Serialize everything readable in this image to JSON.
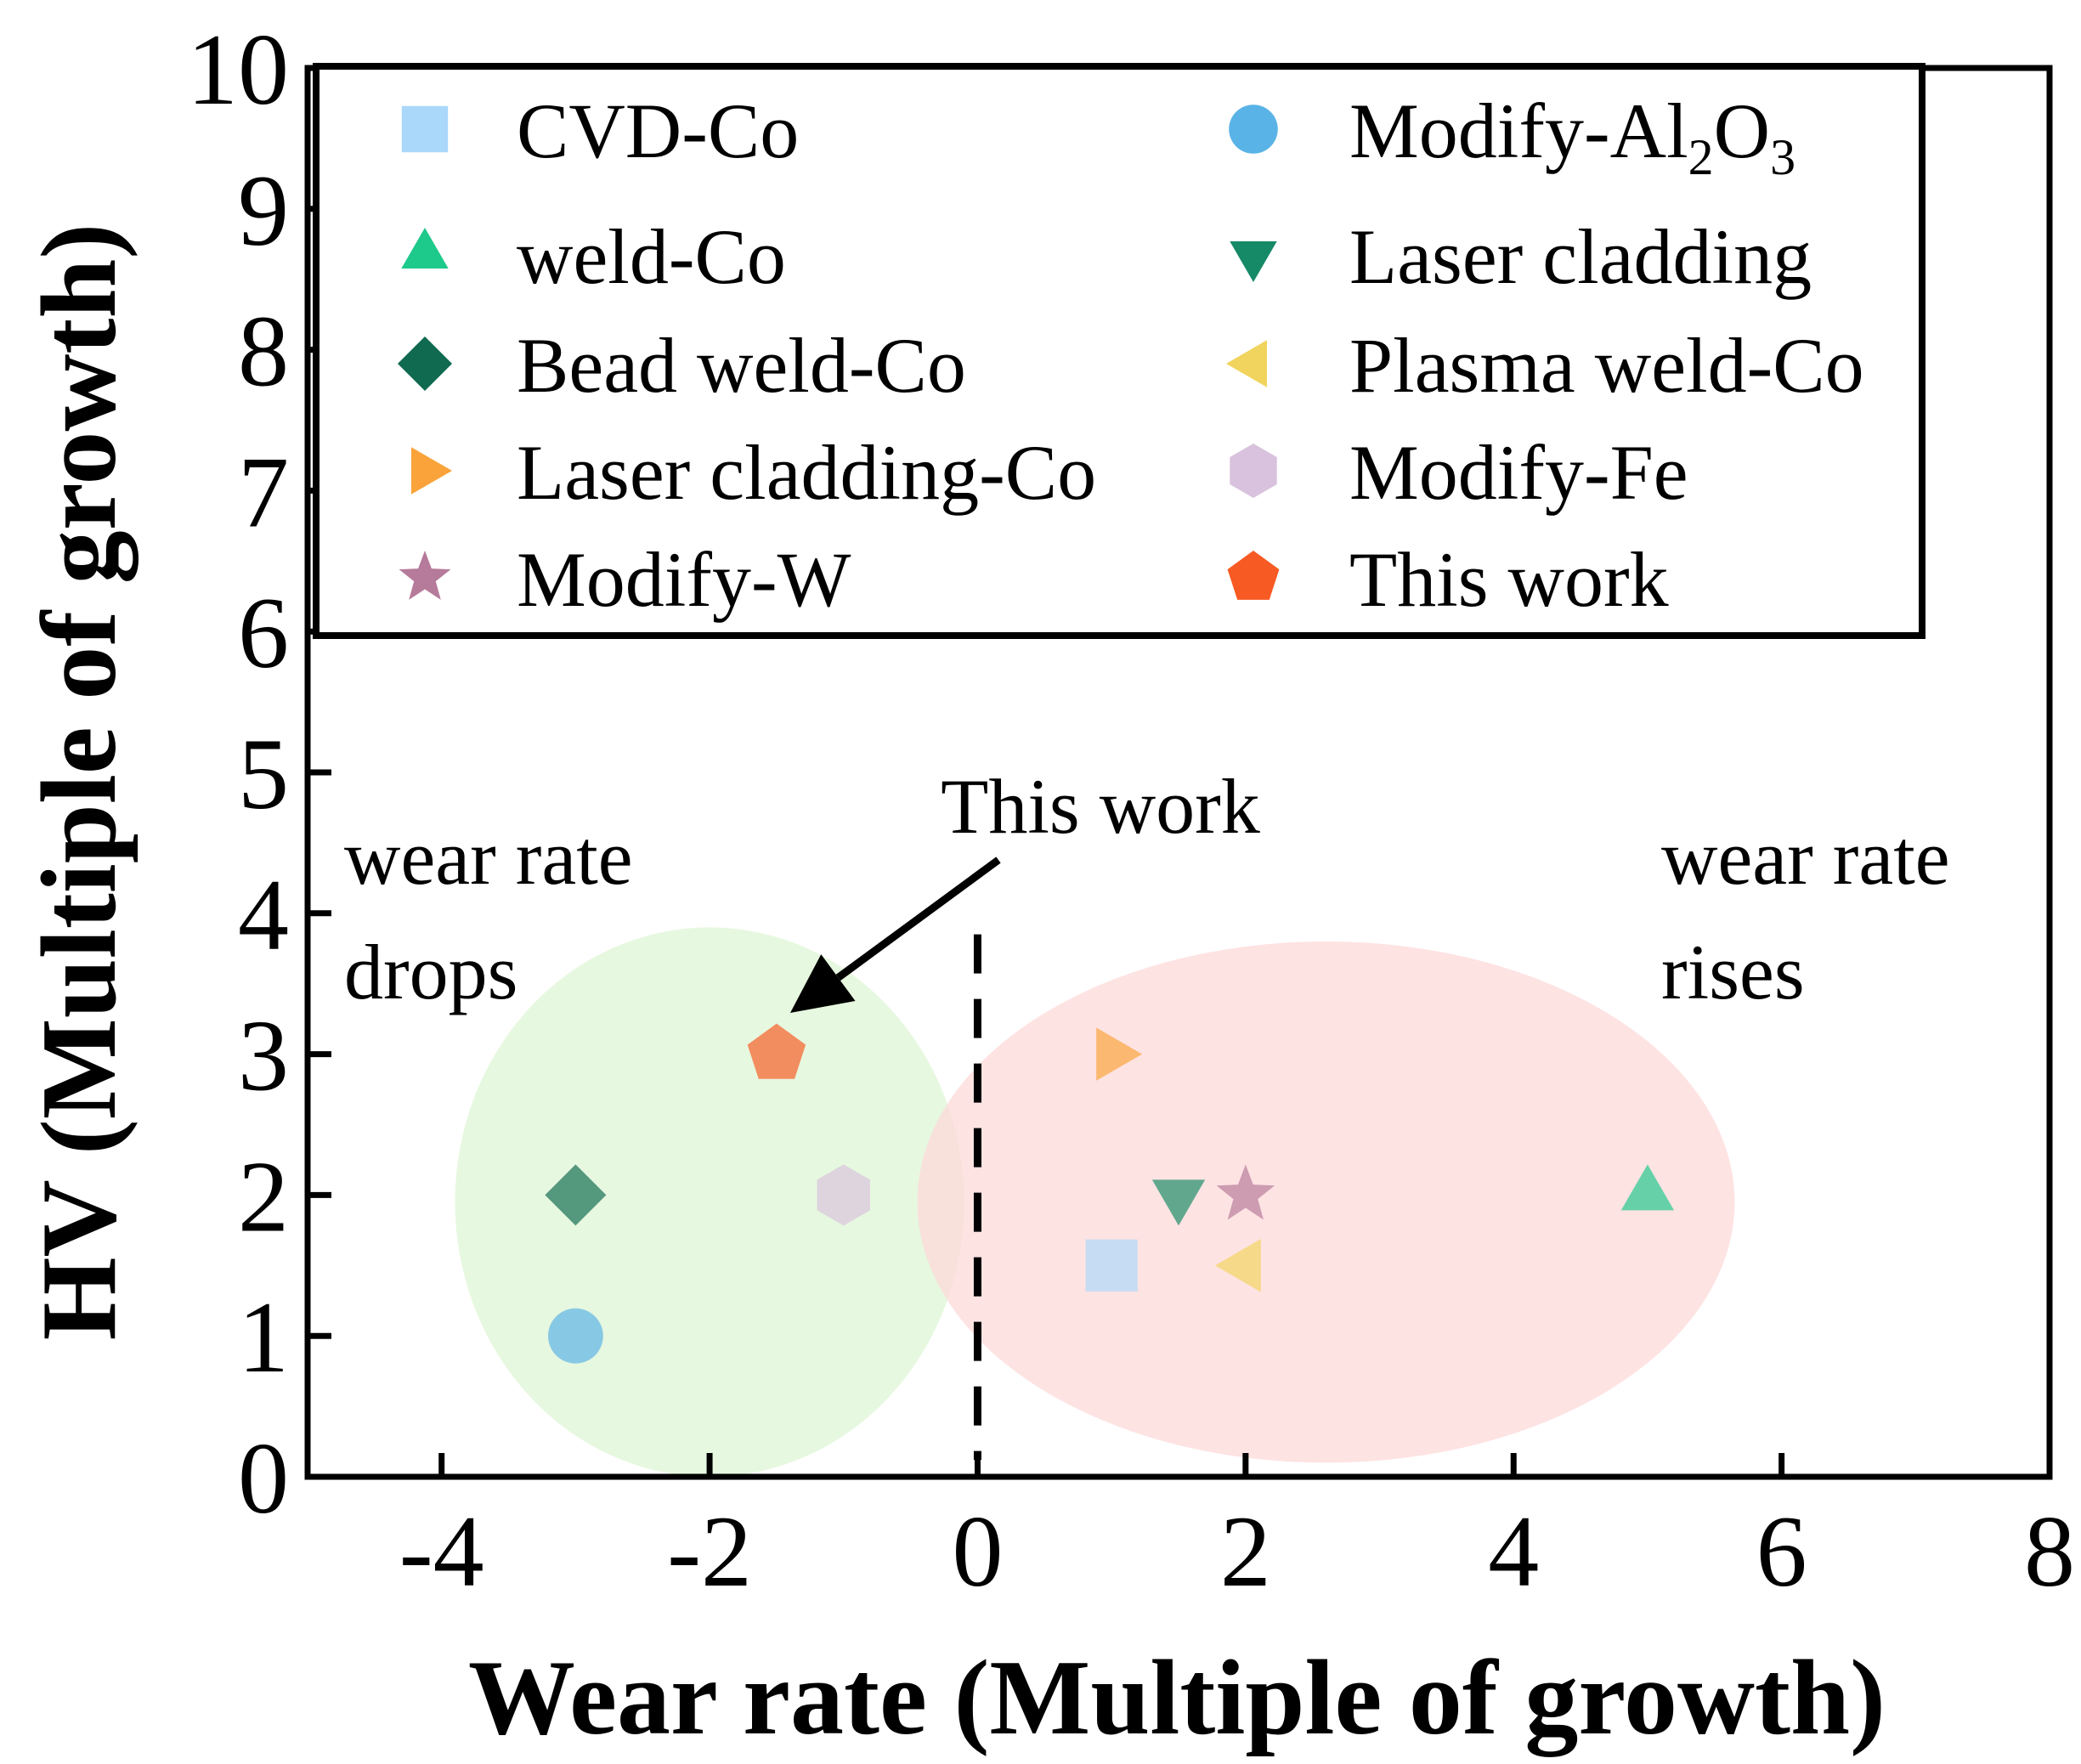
{
  "chart_data": {
    "type": "scatter",
    "title": "",
    "xlabel": "Wear rate (Multiple of growth)",
    "ylabel": "HV (Multiple of growth)",
    "xlim": [
      -5,
      8
    ],
    "ylim": [
      0,
      10
    ],
    "xticks": [
      -4,
      -2,
      0,
      2,
      4,
      6,
      8
    ],
    "yticks": [
      0,
      1,
      2,
      3,
      4,
      5,
      6,
      7,
      8,
      9,
      10
    ],
    "grid": false,
    "legend_position": "top",
    "reference_line": {
      "x": 0,
      "style": "dashed"
    },
    "regions": [
      {
        "name": "wear rate drops",
        "center": [
          -2,
          1.95
        ],
        "radius": [
          1.9,
          1.95
        ],
        "color": "#dff6d6"
      },
      {
        "name": "wear rate rises",
        "center": [
          2.6,
          1.95
        ],
        "radius": [
          3.05,
          1.85
        ],
        "color": "#fdd9d9"
      }
    ],
    "series": [
      {
        "name": "CVD-Co",
        "marker": "square",
        "color": "#aad8fb",
        "x": [
          1.0
        ],
        "y": [
          1.5
        ]
      },
      {
        "name": "Modify-Al2O3",
        "marker": "circle",
        "color": "#5ab3e6",
        "x": [
          -3.0
        ],
        "y": [
          1.0
        ]
      },
      {
        "name": "weld-Co",
        "marker": "triangle-up",
        "color": "#1ec98c",
        "x": [
          5.0
        ],
        "y": [
          2.0
        ]
      },
      {
        "name": "Laser cladding",
        "marker": "triangle-down",
        "color": "#168a66",
        "x": [
          1.5
        ],
        "y": [
          2.0
        ]
      },
      {
        "name": "Bead weld-Co",
        "marker": "diamond",
        "color": "#0f6a4f",
        "x": [
          -3.0
        ],
        "y": [
          2.0
        ]
      },
      {
        "name": "Plasma weld-Co",
        "marker": "triangle-left",
        "color": "#f1d45e",
        "x": [
          2.0
        ],
        "y": [
          1.5
        ]
      },
      {
        "name": "Laser cladding-Co",
        "marker": "triangle-right",
        "color": "#f9a33a",
        "x": [
          1.0
        ],
        "y": [
          3.0
        ]
      },
      {
        "name": "Modify-Fe",
        "marker": "hexagon",
        "color": "#d8c2dd",
        "x": [
          -1.0
        ],
        "y": [
          2.0
        ]
      },
      {
        "name": "Modify-W",
        "marker": "star",
        "color": "#b67a9a",
        "x": [
          2.0
        ],
        "y": [
          2.0
        ]
      },
      {
        "name": "This work",
        "marker": "pentagon",
        "color": "#f85a23",
        "x": [
          -1.5
        ],
        "y": [
          3.0
        ]
      }
    ],
    "legend": {
      "left": [
        {
          "label": "CVD-Co",
          "series": 0
        },
        {
          "label": "weld-Co",
          "series": 2
        },
        {
          "label": "Bead weld-Co",
          "series": 4
        },
        {
          "label": "Laser cladding-Co",
          "series": 6
        },
        {
          "label": "Modify-W",
          "series": 8
        }
      ],
      "right": [
        {
          "label_main": "Modify-Al",
          "sub1": "2",
          "mid": "O",
          "sub2": "3",
          "series": 1
        },
        {
          "label": "Laser cladding",
          "series": 3
        },
        {
          "label": "Plasma weld-Co",
          "series": 5
        },
        {
          "label": "Modify-Fe",
          "series": 7
        },
        {
          "label": "This work",
          "series": 9
        }
      ]
    },
    "annotations": {
      "this_work": "This work",
      "drops_line1": "wear rate",
      "drops_line2": "drops",
      "rises_line1": "wear rate",
      "rises_line2": "rises"
    }
  }
}
